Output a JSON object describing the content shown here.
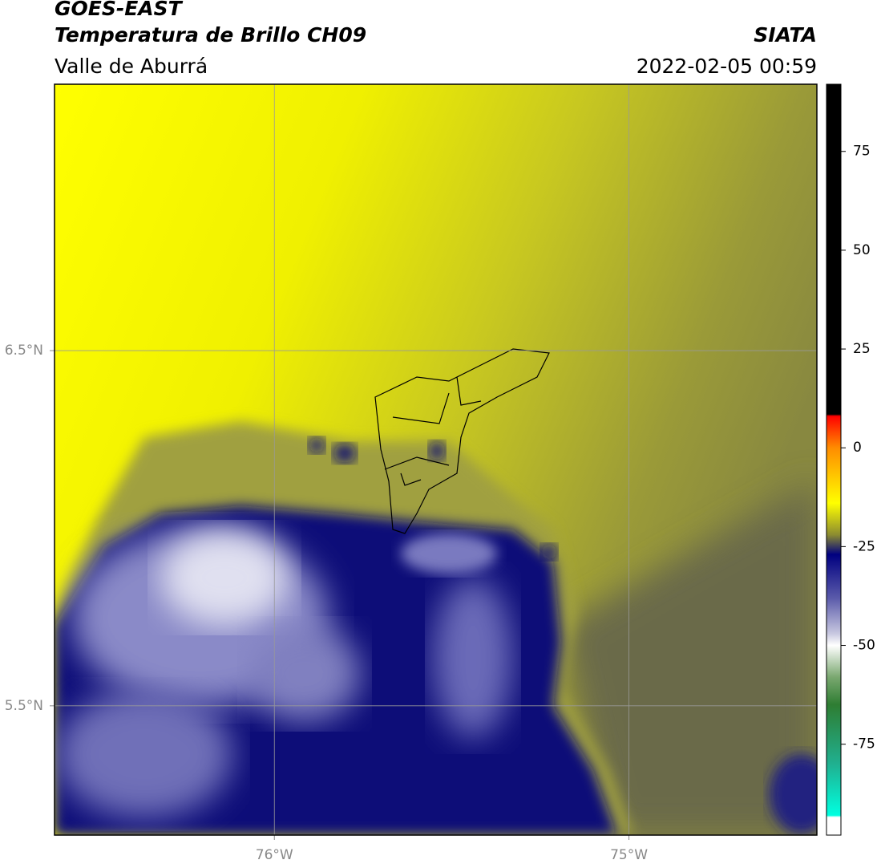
{
  "header": {
    "title": "GOES-EAST",
    "subtitle": "Temperatura de Brillo CH09",
    "region": "Valle de Aburrá",
    "source": "SIATA",
    "datetime": "2022-02-05 00:59"
  },
  "map": {
    "xlim": [
      -76.62,
      -74.47
    ],
    "ylim": [
      5.136,
      7.25
    ],
    "xticks": [
      {
        "value": -76,
        "label": "76°W"
      },
      {
        "value": -75,
        "label": "75°W"
      }
    ],
    "yticks": [
      {
        "value": 6.5,
        "label": "6.5°N"
      },
      {
        "value": 5.5,
        "label": "5.5°N"
      }
    ],
    "grid": true
  },
  "colorbar": {
    "lim": [
      -98,
      92
    ],
    "ticks": [
      75,
      50,
      25,
      0,
      -25,
      -50,
      -75
    ],
    "stops": [
      {
        "value": 92,
        "color": "#000000"
      },
      {
        "value": 8.5,
        "color": "#000000"
      },
      {
        "value": 8,
        "color": "#ff0000"
      },
      {
        "value": 0,
        "color": "#ff8c00"
      },
      {
        "value": -14,
        "color": "#ffff00"
      },
      {
        "value": -22,
        "color": "#8c8c30"
      },
      {
        "value": -27,
        "color": "#000080"
      },
      {
        "value": -38,
        "color": "#5a5aaa"
      },
      {
        "value": -47,
        "color": "#c8c8e0"
      },
      {
        "value": -50,
        "color": "#ffffff"
      },
      {
        "value": -58,
        "color": "#7aa870"
      },
      {
        "value": -65,
        "color": "#2e7d32"
      },
      {
        "value": -80,
        "color": "#20b090"
      },
      {
        "value": -93,
        "color": "#00ffe0"
      },
      {
        "value": -93.5,
        "color": "#ffffff"
      },
      {
        "value": -98,
        "color": "#ffffff"
      }
    ]
  }
}
